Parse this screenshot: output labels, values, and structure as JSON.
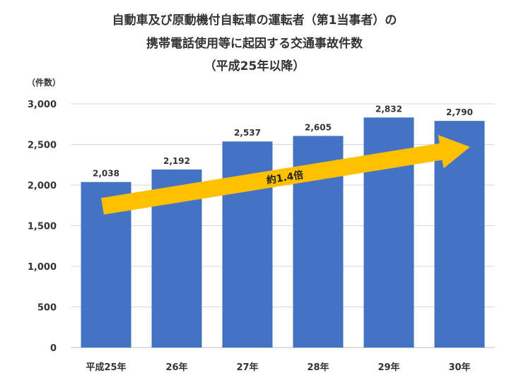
{
  "chart_data": {
    "type": "bar",
    "title_lines": [
      "自動車及び原動機付自転車の運転者（第1当事者）の",
      "携帯電話使用等に起因する交通事故件数",
      "（平成25年以降）"
    ],
    "ylabel": "（件数）",
    "categories": [
      "平成25年",
      "26年",
      "27年",
      "28年",
      "29年",
      "30年"
    ],
    "values": [
      2038,
      2192,
      2537,
      2605,
      2832,
      2790
    ],
    "value_labels": [
      "2,038",
      "2,192",
      "2,537",
      "2,605",
      "2,832",
      "2,790"
    ],
    "ylim": [
      0,
      3000
    ],
    "yticks": [
      0,
      500,
      1000,
      1500,
      2000,
      2500,
      3000
    ],
    "ytick_labels": [
      "0",
      "500",
      "1,000",
      "1,500",
      "2,000",
      "2,500",
      "3,000"
    ],
    "grid": true,
    "bar_color": "#4472C4",
    "annotation": {
      "text": "約1.4倍",
      "color": "#FFC000"
    }
  }
}
